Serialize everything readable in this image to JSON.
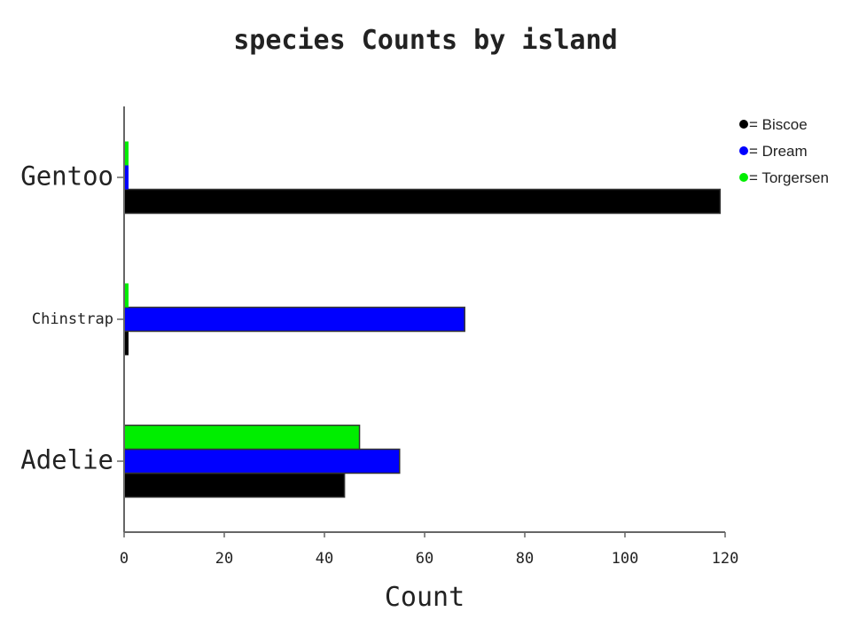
{
  "chart_data": {
    "type": "bar",
    "orientation": "horizontal",
    "title": "species Counts by island",
    "xlabel": "Count",
    "ylabel": "",
    "categories": [
      "Adelie",
      "Chinstrap",
      "Gentoo"
    ],
    "series": [
      {
        "name": "Biscoe",
        "color": "#000000",
        "values": [
          44,
          0,
          119
        ]
      },
      {
        "name": "Dream",
        "color": "#0000ff",
        "values": [
          55,
          68,
          0
        ]
      },
      {
        "name": "Torgersen",
        "color": "#00ee00",
        "values": [
          47,
          0,
          0
        ]
      }
    ],
    "xlim": [
      0,
      120
    ],
    "xticks": [
      "0",
      "20",
      "40",
      "60",
      "80",
      "100",
      "120"
    ],
    "legend_position": "top-right",
    "legend_prefix": "= ",
    "grid": false
  }
}
